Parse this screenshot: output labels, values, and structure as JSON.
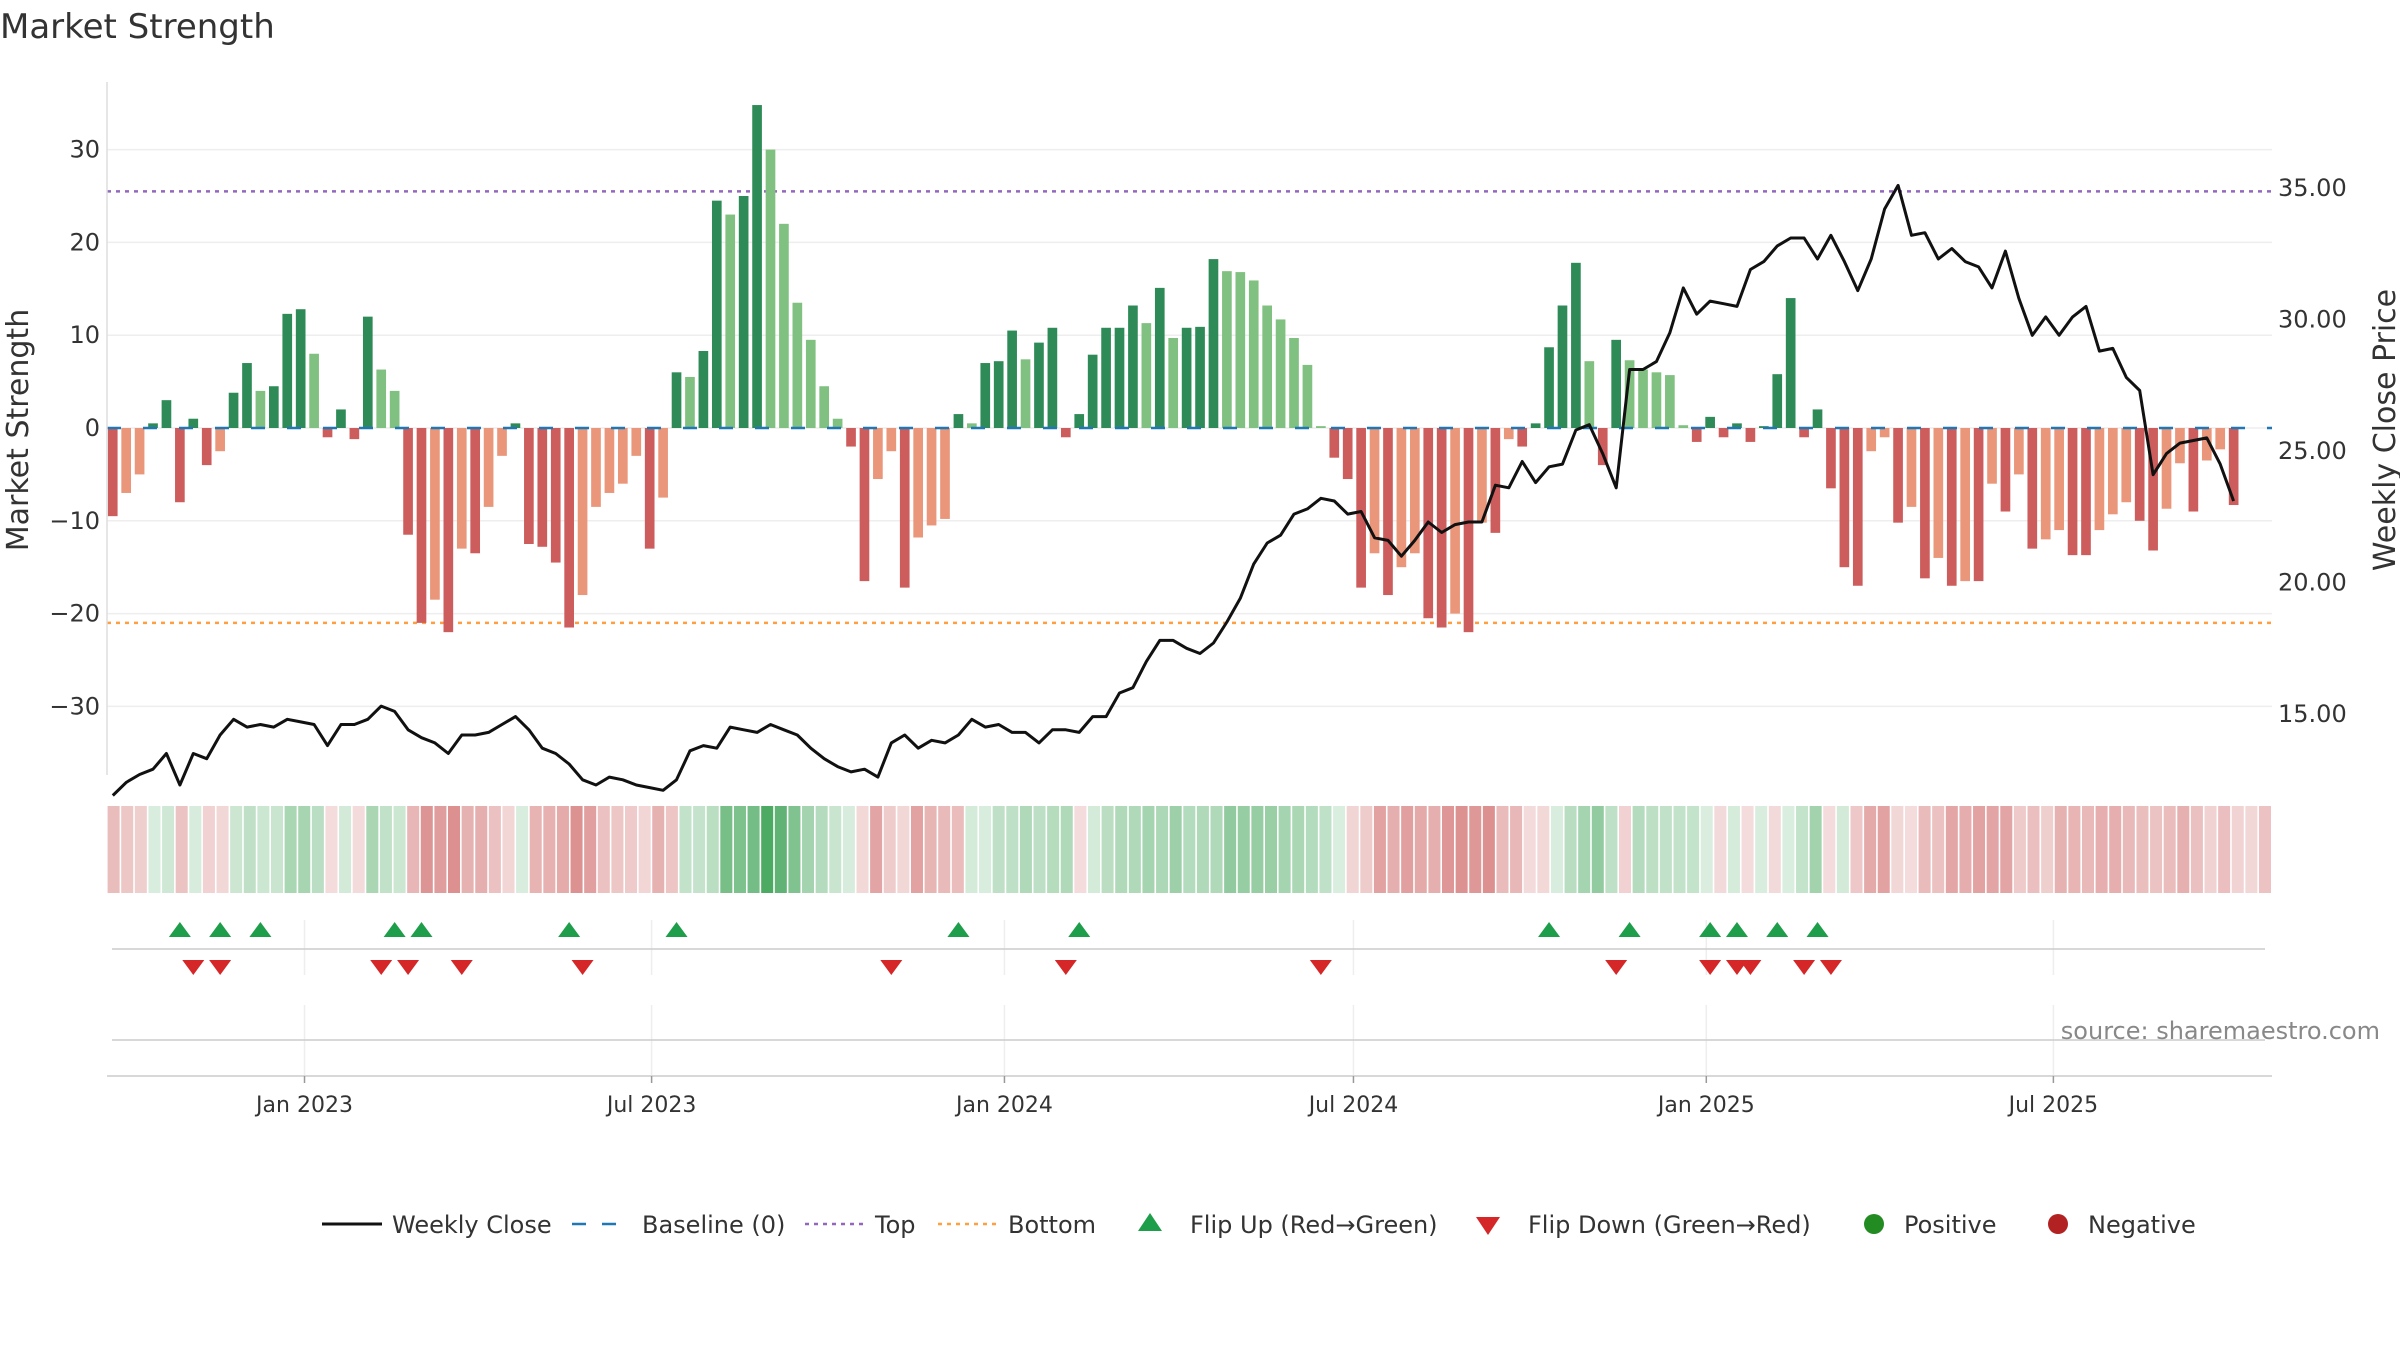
{
  "title": "Market Strength",
  "source": "source: sharemaestro.com",
  "colors": {
    "pos_strong": "#2e8b57",
    "pos_light": "#80c080",
    "neg_strong": "#cd5c5c",
    "neg_light": "#e9967a",
    "close_line": "#111111",
    "baseline": "#1f77b4",
    "top": "#9467bd",
    "bottom": "#ff9f40",
    "flip_up": "#1e9e4a",
    "flip_down": "#d62728",
    "positive": "#228b22",
    "negative": "#b22222"
  },
  "chart_data": {
    "type": "bar",
    "title": "Market Strength",
    "ylabel": "Market Strength",
    "y2label": "Weekly Close Price",
    "ylim": [
      -37,
      37
    ],
    "y2lim": [
      10.5,
      37.5
    ],
    "yticks": [
      30,
      20,
      10,
      0,
      -10,
      -20,
      -30
    ],
    "yticklabels": [
      "30",
      "20",
      "10",
      "0",
      "−10",
      "−20",
      "−30"
    ],
    "y2ticks": [
      35,
      30,
      25,
      20,
      15
    ],
    "y2ticklabels": [
      "35.00",
      "30.00",
      "25.00",
      "20.00",
      "15.00"
    ],
    "x_start": "2022-09-23",
    "x_step_days": 7,
    "xlim": [
      "2022-09-20",
      "2025-10-23"
    ],
    "xticks": [
      "2023-01-01",
      "2023-07-01",
      "2024-01-01",
      "2024-07-01",
      "2025-01-01",
      "2025-07-01"
    ],
    "xticklabels": [
      "Jan 2023",
      "Jul 2023",
      "Jan 2024",
      "Jul 2024",
      "Jan 2025",
      "Jul 2025"
    ],
    "top_level": 25.5,
    "bottom_level": -21,
    "strength": [
      -9.5,
      -7,
      -5,
      0.5,
      3,
      -8,
      1,
      -4,
      -2.5,
      3.8,
      7,
      4,
      4.5,
      12.3,
      12.8,
      8,
      -1,
      2,
      -1.2,
      12,
      6.3,
      4,
      -11.5,
      -21,
      -18.5,
      -22,
      -13,
      -13.5,
      -8.5,
      -3,
      0.5,
      -12.5,
      -12.8,
      -14.5,
      -21.5,
      -18,
      -8.5,
      -7,
      -6,
      -3,
      -13,
      -7.5,
      6,
      5.5,
      8.3,
      24.5,
      23,
      25,
      34.8,
      30,
      22,
      13.5,
      9.5,
      4.5,
      1,
      -2,
      -16.5,
      -5.5,
      -2.5,
      -17.2,
      -11.8,
      -10.5,
      -9.8,
      1.5,
      0.5,
      7,
      7.2,
      10.5,
      7.4,
      9.2,
      10.8,
      -1,
      1.5,
      7.9,
      10.8,
      10.8,
      13.2,
      11.3,
      15.1,
      9.7,
      10.8,
      10.9,
      18.2,
      16.9,
      16.8,
      15.9,
      13.2,
      11.7,
      9.7,
      6.8,
      0.2,
      -3.2,
      -5.5,
      -17.2,
      -13.5,
      -18,
      -15,
      -13.5,
      -20.5,
      -21.5,
      -20,
      -22,
      -10.2,
      -11.3,
      -1.2,
      -2,
      0.5,
      8.7,
      13.2,
      17.8,
      7.2,
      -4,
      9.5,
      7.3,
      6.3,
      6,
      5.7,
      0.3,
      -1.5,
      1.2,
      -1,
      0.5,
      -1.5,
      0.2,
      5.8,
      14,
      -1,
      2,
      -6.5,
      -15,
      -17,
      -2.5,
      -1,
      -10.2,
      -8.5,
      -16.2,
      -14,
      -17,
      -16.5,
      -16.5,
      -6,
      -9,
      -5,
      -13,
      -12,
      -11,
      -13.7,
      -13.7,
      -11,
      -9.3,
      -8,
      -10,
      -13.2,
      -8.7,
      -3.8,
      -9,
      -3.5,
      -2.3,
      -8.3
    ],
    "close": [
      11.9,
      12.4,
      12.7,
      12.9,
      13.5,
      12.3,
      13.5,
      13.3,
      14.2,
      14.8,
      14.5,
      14.6,
      14.5,
      14.8,
      14.7,
      14.6,
      13.8,
      14.6,
      14.6,
      14.8,
      15.3,
      15.1,
      14.4,
      14.1,
      13.9,
      13.5,
      14.2,
      14.2,
      14.3,
      14.6,
      14.9,
      14.4,
      13.7,
      13.5,
      13.1,
      12.5,
      12.3,
      12.6,
      12.5,
      12.3,
      12.2,
      12.1,
      12.5,
      13.6,
      13.8,
      13.7,
      14.5,
      14.4,
      14.3,
      14.6,
      14.4,
      14.2,
      13.7,
      13.3,
      13,
      12.8,
      12.9,
      12.6,
      13.9,
      14.2,
      13.7,
      14,
      13.9,
      14.2,
      14.8,
      14.5,
      14.6,
      14.3,
      14.3,
      13.9,
      14.4,
      14.4,
      14.3,
      14.9,
      14.9,
      15.8,
      16,
      17,
      17.8,
      17.8,
      17.5,
      17.3,
      17.7,
      18.5,
      19.4,
      20.7,
      21.5,
      21.8,
      22.6,
      22.8,
      23.2,
      23.1,
      22.6,
      22.7,
      21.7,
      21.6,
      21,
      21.6,
      22.3,
      21.9,
      22.2,
      22.3,
      22.3,
      23.7,
      23.6,
      24.6,
      23.8,
      24.4,
      24.5,
      25.8,
      26,
      24.9,
      23.6,
      28.1,
      28.1,
      28.4,
      29.5,
      31.2,
      30.2,
      30.7,
      30.6,
      30.5,
      31.9,
      32.2,
      32.8,
      33.1,
      33.1,
      32.3,
      33.2,
      32.2,
      31.1,
      32.3,
      34.2,
      35.1,
      33.2,
      33.3,
      32.3,
      32.7,
      32.2,
      32,
      31.2,
      32.6,
      30.8,
      29.4,
      30.1,
      29.4,
      30.1,
      30.5,
      28.8,
      28.9,
      27.8,
      27.3,
      24.1,
      24.9,
      25.3,
      25.4,
      25.5,
      24.5,
      23.1
    ],
    "heat_strip": "heat color per week tracks strength sign and magnitude",
    "flip_up": [
      "2022-10-28",
      "2022-11-18",
      "2022-12-09",
      "2023-02-17",
      "2023-03-03",
      "2023-05-19",
      "2023-07-14",
      "2023-12-08",
      "2024-02-09",
      "2024-10-11",
      "2024-11-22",
      "2025-01-03",
      "2025-01-17",
      "2025-02-07",
      "2025-02-28"
    ],
    "flip_down": [
      "2022-11-04",
      "2022-11-18",
      "2023-02-10",
      "2023-02-24",
      "2023-03-24",
      "2023-05-26",
      "2023-11-03",
      "2024-02-02",
      "2024-06-14",
      "2024-11-15",
      "2025-01-03",
      "2025-01-17",
      "2025-01-24",
      "2025-02-21",
      "2025-03-07"
    ],
    "legend": [
      {
        "kind": "line",
        "label": "Weekly Close"
      },
      {
        "kind": "dash",
        "label": "Baseline (0)"
      },
      {
        "kind": "dot-top",
        "label": "Top"
      },
      {
        "kind": "dot-bottom",
        "label": "Bottom"
      },
      {
        "kind": "tri-up",
        "label": "Flip Up (Red→Green)"
      },
      {
        "kind": "tri-down",
        "label": "Flip Down (Green→Red)"
      },
      {
        "kind": "dot-pos",
        "label": "Positive"
      },
      {
        "kind": "dot-neg",
        "label": "Negative"
      }
    ],
    "legend_placement": "bottom"
  }
}
